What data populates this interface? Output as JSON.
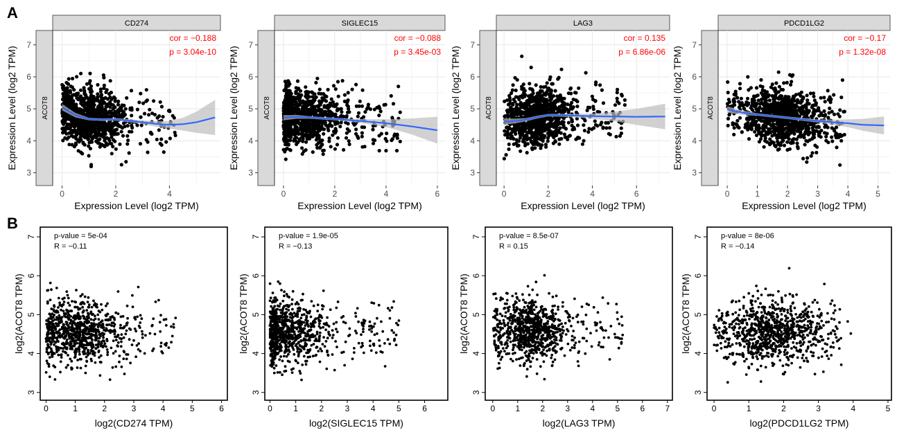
{
  "figure": {
    "panel_a_letter": "A",
    "panel_b_letter": "B"
  },
  "colors": {
    "point": "#000000",
    "fit_line": "#3366FF",
    "ci_band": "#BEBEBE",
    "strip_fill": "#D9D9D9",
    "stat_text": "#FF0000",
    "grid": "#EBEBEB"
  },
  "chart_data": [
    {
      "type": "scatter",
      "panel": "A",
      "strip_title": "CD274",
      "row_strip": "ACOT8",
      "xlabel": "Expression Level (log2 TPM)",
      "ylabel": "Expression Level (log2 TPM)",
      "xlim": [
        -0.35,
        5.9
      ],
      "ylim": [
        2.6,
        7.45
      ],
      "xticks": [
        0,
        2,
        4
      ],
      "yticks": [
        3,
        4,
        5,
        6,
        7
      ],
      "stats": [
        "cor = −0.188",
        "p = 3.04e-10"
      ],
      "x_range_points": [
        0,
        5.7
      ],
      "y_center": 4.65,
      "y_spread": 0.45,
      "x_peak": 1.0,
      "n_points": 950,
      "fit": {
        "x": [
          0,
          0.5,
          1,
          1.5,
          2,
          2.5,
          3,
          3.5,
          4,
          4.5,
          5,
          5.7
        ],
        "y": [
          5.05,
          4.8,
          4.68,
          4.66,
          4.67,
          4.63,
          4.58,
          4.53,
          4.5,
          4.52,
          4.58,
          4.73
        ]
      },
      "ci": {
        "x": [
          0,
          1,
          2,
          3,
          4,
          4.5,
          5,
          5.7
        ],
        "hw": [
          0.1,
          0.04,
          0.04,
          0.06,
          0.12,
          0.2,
          0.33,
          0.55
        ]
      }
    },
    {
      "type": "scatter",
      "panel": "A",
      "strip_title": "SIGLEC15",
      "row_strip": "ACOT8",
      "xlabel": "Expression Level (log2 TPM)",
      "ylabel": "Expression Level (log2 TPM)",
      "xlim": [
        -0.35,
        6.3
      ],
      "ylim": [
        2.6,
        7.45
      ],
      "xticks": [
        0,
        2,
        4,
        6
      ],
      "yticks": [
        3,
        4,
        5,
        6,
        7
      ],
      "stats": [
        "cor = −0.088",
        "p = 3.45e-03"
      ],
      "x_range_points": [
        0,
        6.1
      ],
      "y_center": 4.6,
      "y_spread": 0.45,
      "x_peak": 0.6,
      "n_points": 950,
      "fit": {
        "x": [
          0,
          0.5,
          1,
          2,
          3,
          4,
          5,
          6
        ],
        "y": [
          4.72,
          4.75,
          4.73,
          4.68,
          4.62,
          4.55,
          4.45,
          4.33
        ]
      },
      "ci": {
        "x": [
          0,
          1,
          2,
          3,
          4,
          5,
          6
        ],
        "hw": [
          0.08,
          0.04,
          0.04,
          0.06,
          0.12,
          0.25,
          0.42
        ]
      }
    },
    {
      "type": "scatter",
      "panel": "A",
      "strip_title": "LAG3",
      "row_strip": "ACOT8",
      "xlabel": "Expression Level (log2 TPM)",
      "ylabel": "Expression Level (log2 TPM)",
      "xlim": [
        -0.35,
        7.5
      ],
      "ylim": [
        2.6,
        7.45
      ],
      "xticks": [
        0,
        2,
        4,
        6
      ],
      "yticks": [
        3,
        4,
        5,
        6,
        7
      ],
      "stats": [
        "cor = 0.135",
        "p = 6.86e-06"
      ],
      "x_range_points": [
        0,
        7.3
      ],
      "y_center": 4.6,
      "y_spread": 0.45,
      "x_peak": 1.5,
      "n_points": 950,
      "fit": {
        "x": [
          0,
          0.5,
          1,
          1.5,
          2,
          2.5,
          3,
          4,
          5,
          6,
          7.3
        ],
        "y": [
          4.6,
          4.62,
          4.66,
          4.74,
          4.8,
          4.8,
          4.79,
          4.77,
          4.76,
          4.75,
          4.76
        ]
      },
      "ci": {
        "x": [
          0,
          1,
          2,
          3,
          4,
          5,
          6,
          7.3
        ],
        "hw": [
          0.1,
          0.05,
          0.04,
          0.05,
          0.08,
          0.15,
          0.25,
          0.4
        ]
      }
    },
    {
      "type": "scatter",
      "panel": "A",
      "strip_title": "PDCD1LG2",
      "row_strip": "ACOT8",
      "xlabel": "Expression Level (log2 TPM)",
      "ylabel": "Expression Level (log2 TPM)",
      "xlim": [
        -0.3,
        5.4
      ],
      "ylim": [
        2.6,
        7.45
      ],
      "xticks": [
        0,
        1,
        2,
        3,
        4,
        5
      ],
      "yticks": [
        3,
        4,
        5,
        6,
        7
      ],
      "stats": [
        "cor = −0.17",
        "p = 1.32e-08"
      ],
      "x_range_points": [
        0,
        5.2
      ],
      "y_center": 4.6,
      "y_spread": 0.45,
      "x_peak": 1.8,
      "n_points": 950,
      "fit": {
        "x": [
          0,
          0.5,
          1,
          1.5,
          2,
          2.5,
          3,
          3.5,
          4,
          4.5,
          5.2
        ],
        "y": [
          4.98,
          4.88,
          4.82,
          4.77,
          4.72,
          4.67,
          4.62,
          4.58,
          4.55,
          4.5,
          4.48
        ]
      },
      "ci": {
        "x": [
          0,
          1,
          2,
          3,
          4,
          5.2
        ],
        "hw": [
          0.1,
          0.04,
          0.04,
          0.05,
          0.12,
          0.28
        ]
      }
    },
    {
      "type": "scatter",
      "panel": "B",
      "xlabel": "log2(CD274 TPM)",
      "ylabel": "log2(ACOT8 TPM)",
      "xlim": [
        -0.2,
        6.2
      ],
      "ylim": [
        2.8,
        7.25
      ],
      "xticks": [
        0,
        1,
        2,
        3,
        4,
        5,
        6
      ],
      "yticks": [
        3,
        4,
        5,
        6,
        7
      ],
      "stats": [
        "p-value = 5e-04",
        "R = −0.11"
      ],
      "x_range_points": [
        0,
        6.0
      ],
      "y_center": 4.55,
      "y_spread": 0.42,
      "x_peak": 1.0,
      "n_points": 900
    },
    {
      "type": "scatter",
      "panel": "B",
      "xlabel": "log2(SIGLEC15 TPM)",
      "ylabel": "log2(ACOT8 TPM)",
      "xlim": [
        -0.2,
        6.9
      ],
      "ylim": [
        2.8,
        7.25
      ],
      "xticks": [
        0,
        1,
        2,
        3,
        4,
        5,
        6
      ],
      "yticks": [
        3,
        4,
        5,
        6,
        7
      ],
      "stats": [
        "p-value = 1.9e-05",
        "R = −0.13"
      ],
      "x_range_points": [
        0,
        6.7
      ],
      "y_center": 4.55,
      "y_spread": 0.42,
      "x_peak": 0.5,
      "n_points": 900
    },
    {
      "type": "scatter",
      "panel": "B",
      "xlabel": "log2(LAG3 TPM)",
      "ylabel": "log2(ACOT8 TPM)",
      "xlim": [
        -0.3,
        7.2
      ],
      "ylim": [
        2.8,
        7.25
      ],
      "xticks": [
        0,
        1,
        2,
        3,
        4,
        5,
        6,
        7
      ],
      "yticks": [
        3,
        4,
        5,
        6,
        7
      ],
      "stats": [
        "p-value = 8.5e-07",
        "R = 0.15"
      ],
      "x_range_points": [
        0,
        7.0
      ],
      "y_center": 4.6,
      "y_spread": 0.42,
      "x_peak": 1.5,
      "n_points": 900
    },
    {
      "type": "scatter",
      "panel": "B",
      "xlabel": "log2(PDCD1LG2 TPM)",
      "ylabel": "log2(ACOT8 TPM)",
      "xlim": [
        -0.2,
        5.1
      ],
      "ylim": [
        2.8,
        7.25
      ],
      "xticks": [
        0,
        1,
        2,
        3,
        4,
        5
      ],
      "yticks": [
        3,
        4,
        5,
        6,
        7
      ],
      "stats": [
        "p-value = 8e-06",
        "R = −0.14"
      ],
      "x_range_points": [
        0,
        4.9
      ],
      "y_center": 4.55,
      "y_spread": 0.42,
      "x_peak": 1.7,
      "n_points": 900
    }
  ]
}
